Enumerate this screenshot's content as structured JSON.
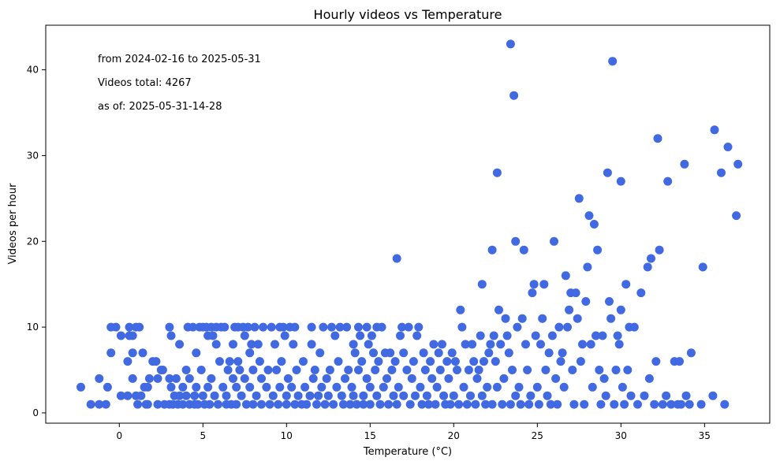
{
  "chart_data": {
    "type": "scatter",
    "title": "Hourly videos vs Temperature",
    "xlabel": "Temperature (°C)",
    "ylabel": "Videos per hour",
    "xlim": [
      -4.4,
      38.9
    ],
    "ylim": [
      -1.2,
      45.2
    ],
    "xticks": [
      0,
      5,
      10,
      15,
      20,
      25,
      30,
      35
    ],
    "yticks": [
      0,
      10,
      20,
      30,
      40
    ],
    "marker_color": "#4169e1",
    "annotations": [
      "from 2024-02-16 to 2025-05-31",
      "Videos total: 4267",
      "as of: 2025-05-31-14-28"
    ],
    "grid": false,
    "legend": "none",
    "points": [
      [
        -2.3,
        3
      ],
      [
        -1.7,
        1
      ],
      [
        -1.2,
        4
      ],
      [
        -1.2,
        1
      ],
      [
        -0.8,
        1
      ],
      [
        -0.7,
        3
      ],
      [
        -0.5,
        10
      ],
      [
        -0.5,
        7
      ],
      [
        -0.2,
        10
      ],
      [
        0.1,
        9
      ],
      [
        0.1,
        2
      ],
      [
        0.5,
        2
      ],
      [
        0.5,
        6
      ],
      [
        0.6,
        10
      ],
      [
        0.6,
        9
      ],
      [
        0.8,
        9
      ],
      [
        0.8,
        7
      ],
      [
        0.8,
        4
      ],
      [
        1.0,
        10
      ],
      [
        1.0,
        2
      ],
      [
        1.1,
        1
      ],
      [
        1.2,
        10
      ],
      [
        1.3,
        2
      ],
      [
        1.4,
        7
      ],
      [
        1.5,
        3
      ],
      [
        1.6,
        1
      ],
      [
        1.7,
        3
      ],
      [
        1.7,
        1
      ],
      [
        1.8,
        4
      ],
      [
        2.0,
        6
      ],
      [
        2.2,
        6
      ],
      [
        2.3,
        1
      ],
      [
        2.3,
        4
      ],
      [
        2.5,
        5
      ],
      [
        2.6,
        5
      ],
      [
        2.7,
        1
      ],
      [
        3.0,
        10
      ],
      [
        3.0,
        4
      ],
      [
        3.0,
        1
      ],
      [
        3.1,
        9
      ],
      [
        3.1,
        3
      ],
      [
        3.2,
        1
      ],
      [
        3.3,
        2
      ],
      [
        3.4,
        4
      ],
      [
        3.5,
        1
      ],
      [
        3.6,
        8
      ],
      [
        3.6,
        2
      ],
      [
        3.8,
        3
      ],
      [
        3.8,
        1
      ],
      [
        4.0,
        5
      ],
      [
        4.0,
        2
      ],
      [
        4.1,
        10
      ],
      [
        4.2,
        4
      ],
      [
        4.2,
        1
      ],
      [
        4.4,
        10
      ],
      [
        4.5,
        2
      ],
      [
        4.5,
        1
      ],
      [
        4.6,
        7
      ],
      [
        4.6,
        3
      ],
      [
        4.7,
        1
      ],
      [
        4.8,
        10
      ],
      [
        4.9,
        5
      ],
      [
        5.0,
        10
      ],
      [
        5.0,
        2
      ],
      [
        5.1,
        1
      ],
      [
        5.2,
        10
      ],
      [
        5.3,
        9
      ],
      [
        5.3,
        3
      ],
      [
        5.4,
        1
      ],
      [
        5.5,
        10
      ],
      [
        5.5,
        4
      ],
      [
        5.6,
        9
      ],
      [
        5.7,
        2
      ],
      [
        5.8,
        10
      ],
      [
        5.8,
        8
      ],
      [
        5.9,
        1
      ],
      [
        6.0,
        6
      ],
      [
        6.1,
        10
      ],
      [
        6.2,
        3
      ],
      [
        6.3,
        10
      ],
      [
        6.4,
        2
      ],
      [
        6.4,
        1
      ],
      [
        6.5,
        5
      ],
      [
        6.6,
        6
      ],
      [
        6.7,
        1
      ],
      [
        6.8,
        8
      ],
      [
        6.8,
        4
      ],
      [
        6.9,
        10
      ],
      [
        7.0,
        3
      ],
      [
        7.0,
        1
      ],
      [
        7.1,
        10
      ],
      [
        7.1,
        6
      ],
      [
        7.2,
        5
      ],
      [
        7.3,
        2
      ],
      [
        7.4,
        10
      ],
      [
        7.5,
        9
      ],
      [
        7.5,
        4
      ],
      [
        7.6,
        1
      ],
      [
        7.7,
        10
      ],
      [
        7.8,
        7
      ],
      [
        7.8,
        3
      ],
      [
        7.9,
        8
      ],
      [
        8.0,
        5
      ],
      [
        8.0,
        1
      ],
      [
        8.1,
        10
      ],
      [
        8.2,
        2
      ],
      [
        8.3,
        8
      ],
      [
        8.4,
        6
      ],
      [
        8.5,
        4
      ],
      [
        8.5,
        1
      ],
      [
        8.6,
        10
      ],
      [
        8.8,
        3
      ],
      [
        8.9,
        5
      ],
      [
        9.0,
        1
      ],
      [
        9.1,
        10
      ],
      [
        9.2,
        2
      ],
      [
        9.3,
        8
      ],
      [
        9.4,
        5
      ],
      [
        9.5,
        1
      ],
      [
        9.6,
        10
      ],
      [
        9.6,
        3
      ],
      [
        9.7,
        6
      ],
      [
        9.8,
        10
      ],
      [
        9.9,
        9
      ],
      [
        10.0,
        2
      ],
      [
        10.0,
        1
      ],
      [
        10.1,
        4
      ],
      [
        10.2,
        10
      ],
      [
        10.3,
        3
      ],
      [
        10.4,
        8
      ],
      [
        10.5,
        10
      ],
      [
        10.5,
        1
      ],
      [
        10.6,
        5
      ],
      [
        10.7,
        2
      ],
      [
        10.9,
        1
      ],
      [
        11.0,
        6
      ],
      [
        11.1,
        3
      ],
      [
        11.2,
        1
      ],
      [
        11.4,
        2
      ],
      [
        11.5,
        10
      ],
      [
        11.5,
        8
      ],
      [
        11.6,
        4
      ],
      [
        11.7,
        5
      ],
      [
        11.8,
        1
      ],
      [
        11.9,
        2
      ],
      [
        12.0,
        7
      ],
      [
        12.1,
        3
      ],
      [
        12.2,
        10
      ],
      [
        12.3,
        1
      ],
      [
        12.4,
        4
      ],
      [
        12.5,
        2
      ],
      [
        12.6,
        5
      ],
      [
        12.7,
        10
      ],
      [
        12.8,
        1
      ],
      [
        12.9,
        9
      ],
      [
        13.0,
        3
      ],
      [
        13.1,
        6
      ],
      [
        13.2,
        10
      ],
      [
        13.3,
        2
      ],
      [
        13.4,
        1
      ],
      [
        13.5,
        4
      ],
      [
        13.6,
        10
      ],
      [
        13.7,
        5
      ],
      [
        13.8,
        1
      ],
      [
        13.9,
        3
      ],
      [
        14.0,
        8
      ],
      [
        14.0,
        2
      ],
      [
        14.1,
        7
      ],
      [
        14.2,
        1
      ],
      [
        14.3,
        10
      ],
      [
        14.3,
        5
      ],
      [
        14.4,
        9
      ],
      [
        14.5,
        6
      ],
      [
        14.6,
        2
      ],
      [
        14.6,
        1
      ],
      [
        14.8,
        10
      ],
      [
        14.8,
        4
      ],
      [
        14.9,
        8
      ],
      [
        15.0,
        3
      ],
      [
        15.0,
        1
      ],
      [
        15.1,
        9
      ],
      [
        15.2,
        7
      ],
      [
        15.3,
        5
      ],
      [
        15.4,
        10
      ],
      [
        15.4,
        2
      ],
      [
        15.5,
        6
      ],
      [
        15.6,
        1
      ],
      [
        15.7,
        10
      ],
      [
        15.8,
        3
      ],
      [
        15.9,
        7
      ],
      [
        16.0,
        4
      ],
      [
        16.1,
        1
      ],
      [
        16.2,
        7
      ],
      [
        16.3,
        5
      ],
      [
        16.4,
        2
      ],
      [
        16.5,
        6
      ],
      [
        16.6,
        18
      ],
      [
        16.6,
        1
      ],
      [
        16.7,
        3
      ],
      [
        16.8,
        9
      ],
      [
        16.9,
        10
      ],
      [
        17.0,
        7
      ],
      [
        17.0,
        2
      ],
      [
        17.2,
        5
      ],
      [
        17.3,
        10
      ],
      [
        17.4,
        1
      ],
      [
        17.5,
        4
      ],
      [
        17.6,
        6
      ],
      [
        17.7,
        2
      ],
      [
        17.8,
        9
      ],
      [
        17.9,
        10
      ],
      [
        18.0,
        3
      ],
      [
        18.1,
        1
      ],
      [
        18.2,
        7
      ],
      [
        18.3,
        5
      ],
      [
        18.4,
        2
      ],
      [
        18.5,
        1
      ],
      [
        18.6,
        6
      ],
      [
        18.7,
        4
      ],
      [
        18.8,
        8
      ],
      [
        18.9,
        1
      ],
      [
        19.0,
        3
      ],
      [
        19.1,
        7
      ],
      [
        19.2,
        5
      ],
      [
        19.3,
        8
      ],
      [
        19.4,
        2
      ],
      [
        19.5,
        1
      ],
      [
        19.6,
        6
      ],
      [
        19.7,
        4
      ],
      [
        19.8,
        1
      ],
      [
        19.9,
        7
      ],
      [
        20.0,
        2
      ],
      [
        20.1,
        6
      ],
      [
        20.2,
        5
      ],
      [
        20.3,
        1
      ],
      [
        20.4,
        12
      ],
      [
        20.5,
        10
      ],
      [
        20.6,
        3
      ],
      [
        20.7,
        8
      ],
      [
        20.8,
        1
      ],
      [
        20.9,
        5
      ],
      [
        21.0,
        2
      ],
      [
        21.1,
        8
      ],
      [
        21.2,
        6
      ],
      [
        21.3,
        1
      ],
      [
        21.4,
        4
      ],
      [
        21.5,
        5
      ],
      [
        21.6,
        9
      ],
      [
        21.7,
        15
      ],
      [
        21.7,
        2
      ],
      [
        21.8,
        6
      ],
      [
        21.9,
        1
      ],
      [
        22.0,
        3
      ],
      [
        22.1,
        7
      ],
      [
        22.2,
        8
      ],
      [
        22.3,
        19
      ],
      [
        22.3,
        1
      ],
      [
        22.4,
        9
      ],
      [
        22.5,
        6
      ],
      [
        22.6,
        28
      ],
      [
        22.6,
        3
      ],
      [
        22.7,
        12
      ],
      [
        22.8,
        8
      ],
      [
        22.9,
        1
      ],
      [
        23.0,
        4
      ],
      [
        23.1,
        11
      ],
      [
        23.2,
        9
      ],
      [
        23.3,
        7
      ],
      [
        23.4,
        43
      ],
      [
        23.4,
        1
      ],
      [
        23.5,
        5
      ],
      [
        23.6,
        37
      ],
      [
        23.7,
        20
      ],
      [
        23.7,
        2
      ],
      [
        23.8,
        10
      ],
      [
        23.9,
        3
      ],
      [
        24.0,
        1
      ],
      [
        24.1,
        11
      ],
      [
        24.2,
        19
      ],
      [
        24.3,
        8
      ],
      [
        24.4,
        5
      ],
      [
        24.5,
        1
      ],
      [
        24.6,
        2
      ],
      [
        24.7,
        14
      ],
      [
        24.8,
        15
      ],
      [
        24.9,
        9
      ],
      [
        25.0,
        3
      ],
      [
        25.1,
        1
      ],
      [
        25.2,
        8
      ],
      [
        25.3,
        11
      ],
      [
        25.4,
        15
      ],
      [
        25.5,
        5
      ],
      [
        25.6,
        2
      ],
      [
        25.7,
        7
      ],
      [
        25.8,
        1
      ],
      [
        25.9,
        9
      ],
      [
        26.0,
        20
      ],
      [
        26.1,
        4
      ],
      [
        26.2,
        1
      ],
      [
        26.3,
        10
      ],
      [
        26.4,
        6
      ],
      [
        26.5,
        7
      ],
      [
        26.6,
        3
      ],
      [
        26.7,
        16
      ],
      [
        26.8,
        10
      ],
      [
        26.9,
        12
      ],
      [
        27.0,
        14
      ],
      [
        27.1,
        5
      ],
      [
        27.2,
        1
      ],
      [
        27.3,
        14
      ],
      [
        27.4,
        11
      ],
      [
        27.5,
        25
      ],
      [
        27.6,
        6
      ],
      [
        27.7,
        8
      ],
      [
        27.8,
        1
      ],
      [
        27.9,
        13
      ],
      [
        28.0,
        17
      ],
      [
        28.1,
        23
      ],
      [
        28.2,
        8
      ],
      [
        28.3,
        3
      ],
      [
        28.4,
        22
      ],
      [
        28.5,
        9
      ],
      [
        28.6,
        19
      ],
      [
        28.7,
        5
      ],
      [
        28.8,
        1
      ],
      [
        28.9,
        9
      ],
      [
        29.0,
        4
      ],
      [
        29.1,
        2
      ],
      [
        29.2,
        28
      ],
      [
        29.3,
        13
      ],
      [
        29.4,
        11
      ],
      [
        29.5,
        41
      ],
      [
        29.6,
        1
      ],
      [
        29.7,
        5
      ],
      [
        29.8,
        9
      ],
      [
        29.9,
        8
      ],
      [
        30.0,
        27
      ],
      [
        30.0,
        12
      ],
      [
        30.1,
        3
      ],
      [
        30.2,
        1
      ],
      [
        30.3,
        15
      ],
      [
        30.4,
        5
      ],
      [
        30.5,
        10
      ],
      [
        30.6,
        2
      ],
      [
        30.8,
        10
      ],
      [
        31.0,
        1
      ],
      [
        31.2,
        14
      ],
      [
        31.4,
        2
      ],
      [
        31.6,
        17
      ],
      [
        31.7,
        4
      ],
      [
        31.8,
        18
      ],
      [
        32.0,
        1
      ],
      [
        32.1,
        6
      ],
      [
        32.2,
        32
      ],
      [
        32.3,
        19
      ],
      [
        32.5,
        1
      ],
      [
        32.7,
        2
      ],
      [
        32.8,
        27
      ],
      [
        33.0,
        1
      ],
      [
        33.2,
        6
      ],
      [
        33.4,
        1
      ],
      [
        33.5,
        6
      ],
      [
        33.6,
        1
      ],
      [
        33.8,
        29
      ],
      [
        33.9,
        2
      ],
      [
        34.1,
        1
      ],
      [
        34.2,
        7
      ],
      [
        34.8,
        1
      ],
      [
        34.9,
        17
      ],
      [
        35.5,
        2
      ],
      [
        35.6,
        33
      ],
      [
        36.0,
        28
      ],
      [
        36.2,
        1
      ],
      [
        36.4,
        31
      ],
      [
        36.9,
        23
      ],
      [
        37.0,
        29
      ]
    ]
  }
}
